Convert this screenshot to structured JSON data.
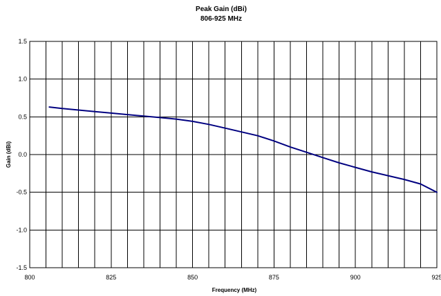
{
  "chart_data": {
    "type": "line",
    "title": "Peak Gain (dBi)",
    "subtitle": "806-925 MHz",
    "xlabel": "Frequency (MHz)",
    "ylabel": "Gain (dBi)",
    "xlim": [
      800,
      925
    ],
    "ylim": [
      -1.5,
      1.5
    ],
    "x_ticks": [
      800,
      825,
      850,
      875,
      900,
      925
    ],
    "x_tick_labels": [
      "800",
      "825",
      "850",
      "875",
      "900",
      "925"
    ],
    "x_grid_step": 5,
    "y_ticks": [
      -1.5,
      -1.0,
      -0.5,
      0.0,
      0.5,
      1.0,
      1.5
    ],
    "y_tick_labels": [
      "-1.5",
      "-1.0",
      "-0.5",
      "0.0",
      "0.5",
      "1.0",
      "1.5"
    ],
    "grid": true,
    "legend": "none",
    "series": [
      {
        "color": "#000080",
        "x": [
          806,
          810,
          815,
          820,
          825,
          830,
          835,
          840,
          845,
          850,
          855,
          860,
          865,
          870,
          875,
          880,
          885,
          890,
          895,
          900,
          905,
          910,
          915,
          920,
          925
        ],
        "values": [
          0.63,
          0.61,
          0.59,
          0.57,
          0.55,
          0.53,
          0.51,
          0.49,
          0.47,
          0.44,
          0.4,
          0.35,
          0.3,
          0.25,
          0.18,
          0.1,
          0.03,
          -0.04,
          -0.11,
          -0.17,
          -0.23,
          -0.28,
          -0.33,
          -0.39,
          -0.5
        ]
      }
    ]
  }
}
